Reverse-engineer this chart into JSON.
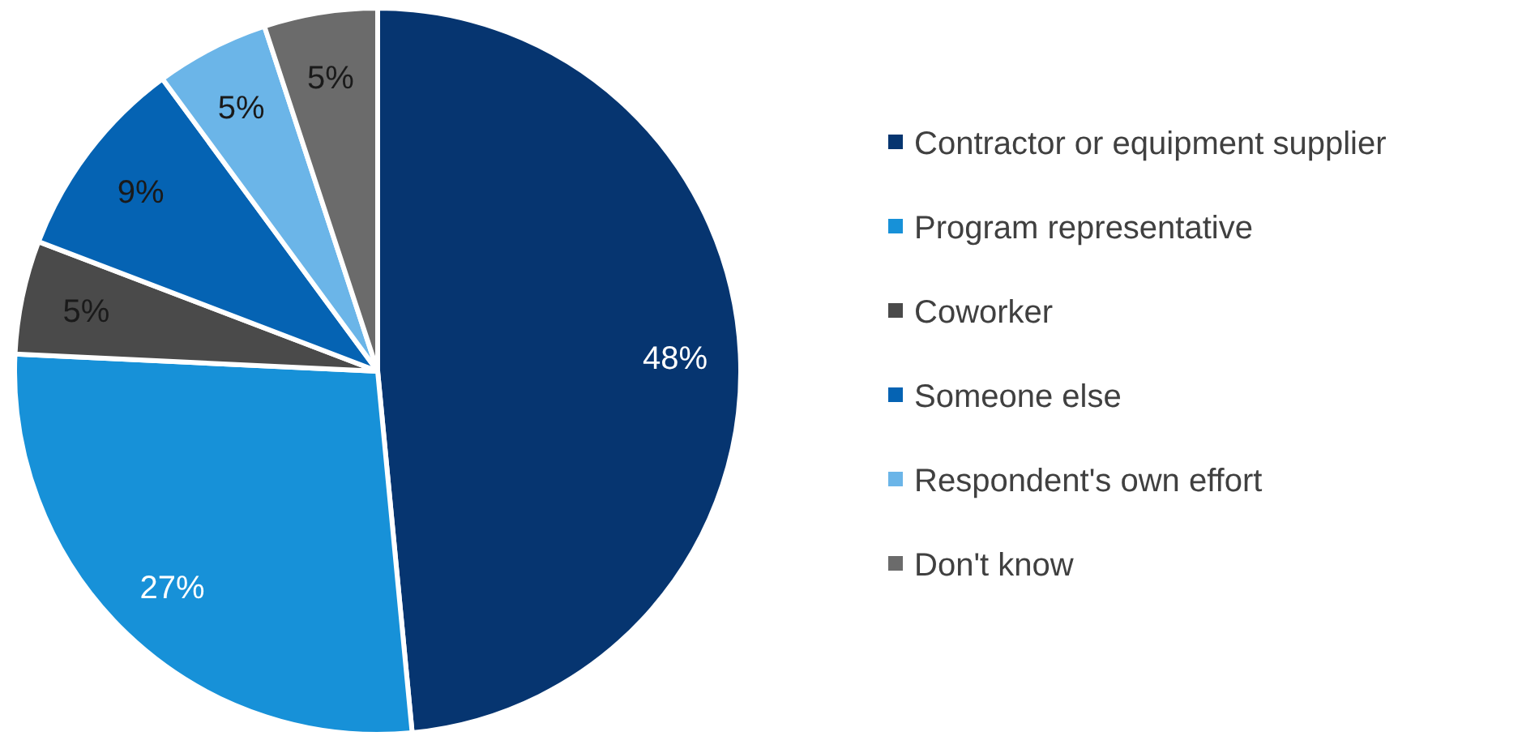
{
  "chart_data": {
    "type": "pie",
    "categories": [
      "Contractor or equipment supplier",
      "Program representative",
      "Coworker",
      "Someone else",
      "Respondent's own effort",
      "Don't know"
    ],
    "values": [
      48,
      27,
      5,
      9,
      5,
      5
    ],
    "colors": [
      "#063570",
      "#1791d8",
      "#4a4a4a",
      "#0563b3",
      "#6bb5e8",
      "#6b6b6b"
    ],
    "value_labels": [
      "48%",
      "27%",
      "5%",
      "9%",
      "5%",
      "5%"
    ],
    "legend": "right"
  }
}
